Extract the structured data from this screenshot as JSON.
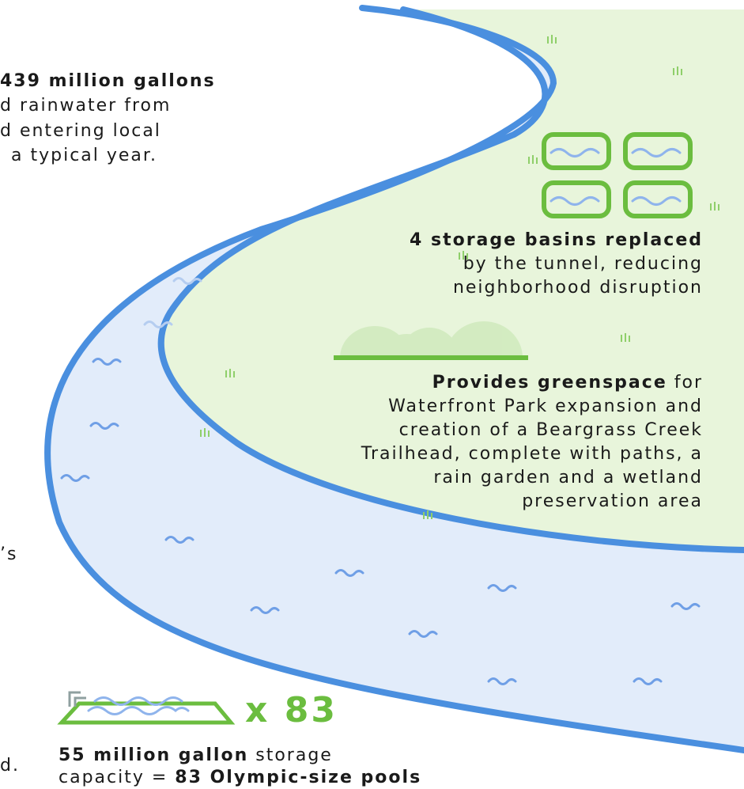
{
  "colors": {
    "river_stroke": "#4a8fdf",
    "river_fill": "#e2ecfa",
    "greenspace_fill": "#e8f5db",
    "accent_green": "#6bbd3f",
    "wave_light": "#b5cdf0"
  },
  "rainwater": {
    "line1_bold": "439 million gallons",
    "line2": "d rainwater from",
    "line3": "d entering local",
    "line4": "a typical year."
  },
  "basins": {
    "title_bold": "4 storage basins replaced",
    "line2": "by the tunnel, reducing",
    "line3": "neighborhood disruption",
    "icon": "storage-basin-icon"
  },
  "greenspace": {
    "title_bold": "Provides greenspace",
    "title_rest": " for",
    "line2": "Waterfront Park expansion and",
    "line3": "creation of a Beargrass Creek",
    "line4": "Trailhead, complete with paths, a",
    "line5": "rain garden and a wetland",
    "line6": "preservation area",
    "icon": "bushes-icon"
  },
  "left_fragments": {
    "frag1": "’s",
    "frag2": "d."
  },
  "pools": {
    "multiplier": "x 83",
    "line1_bold": "55 million gallon",
    "line1_rest": " storage",
    "line2_pre": "capacity = ",
    "line2_bold": "83 Olympic-size pools",
    "icon": "pool-icon"
  }
}
